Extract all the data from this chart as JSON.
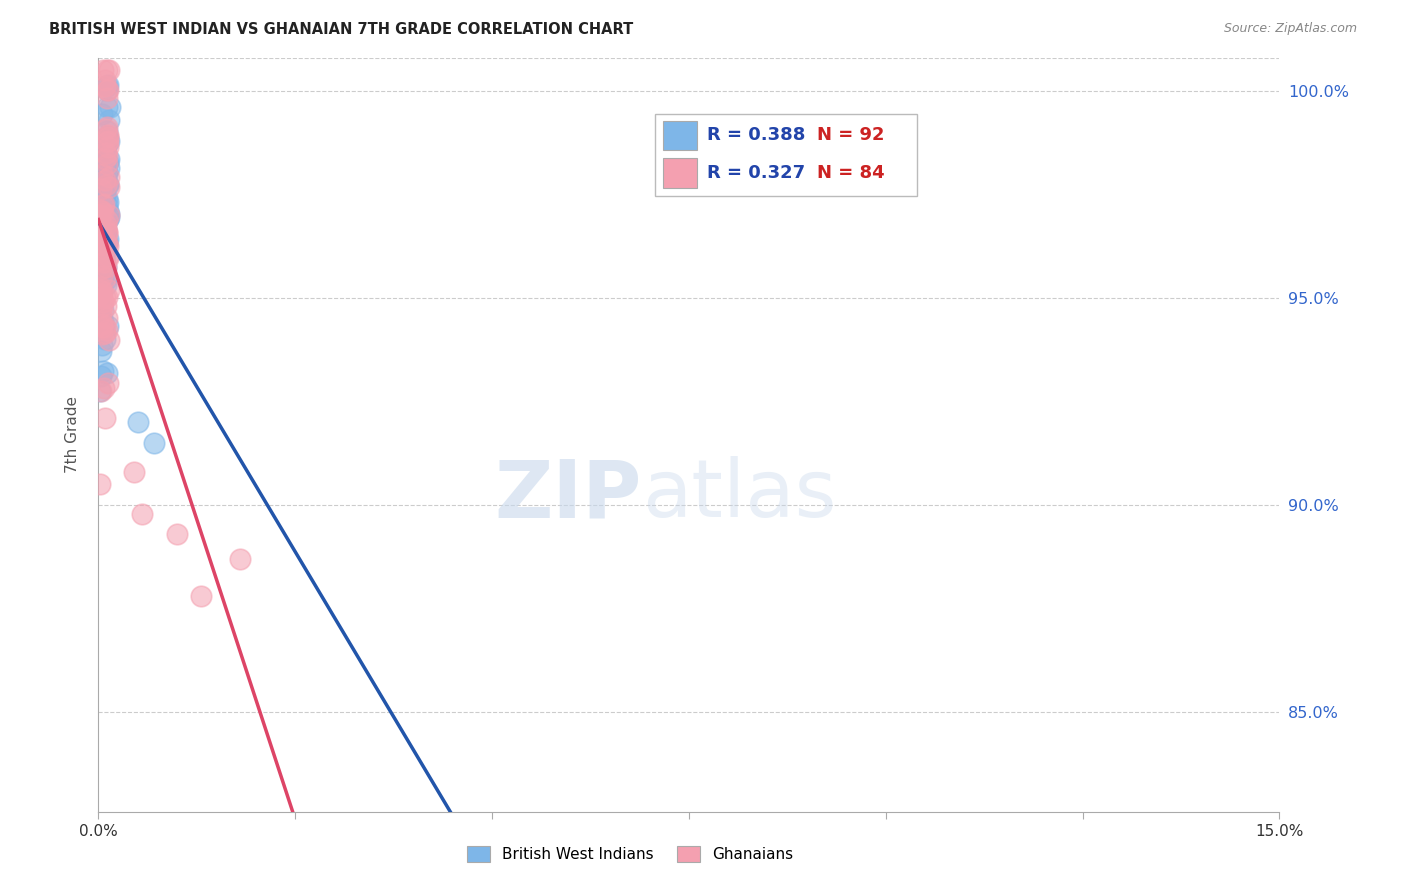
{
  "title": "BRITISH WEST INDIAN VS GHANAIAN 7TH GRADE CORRELATION CHART",
  "source": "Source: ZipAtlas.com",
  "ylabel": "7th Grade",
  "ylabel_right_ticks": [
    "100.0%",
    "95.0%",
    "90.0%",
    "85.0%"
  ],
  "ylabel_right_vals": [
    1.0,
    0.95,
    0.9,
    0.85
  ],
  "x_range": [
    0.0,
    0.15
  ],
  "y_range": [
    0.826,
    1.008
  ],
  "legend_blue_r": "R = 0.388",
  "legend_blue_n": "N = 92",
  "legend_pink_r": "R = 0.327",
  "legend_pink_n": "N = 84",
  "blue_color": "#7eb6e8",
  "pink_color": "#f4a0b0",
  "trendline_blue_color": "#2255aa",
  "trendline_pink_color": "#dd4466",
  "watermark_zip": "ZIP",
  "watermark_atlas": "atlas",
  "background_color": "#ffffff",
  "grid_color": "#cccccc",
  "right_tick_color": "#3366cc",
  "title_color": "#222222",
  "source_color": "#888888",
  "ylabel_color": "#555555"
}
